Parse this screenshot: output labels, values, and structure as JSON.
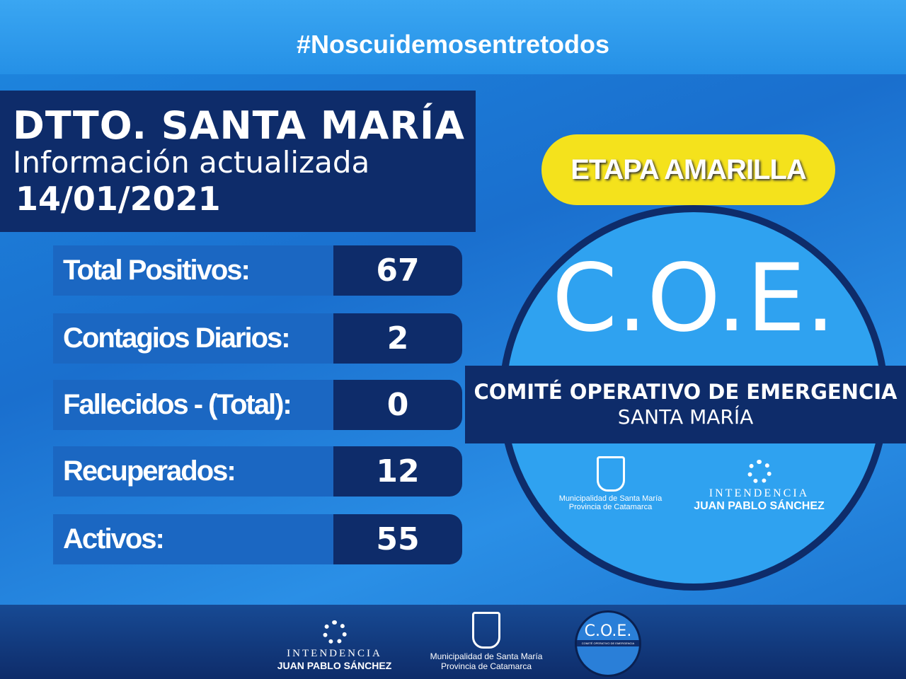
{
  "hashtag": "#Noscuidemosentretodos",
  "title": {
    "district": "DTTO. SANTA MARÍA",
    "subtitle": "Información actualizada",
    "date": "14/01/2021"
  },
  "stats": [
    {
      "label": "Total Positivos:",
      "value": "67"
    },
    {
      "label": "Contagios Diarios:",
      "value": "2"
    },
    {
      "label": "Fallecidos - (Total):",
      "value": "0"
    },
    {
      "label": "Recuperados:",
      "value": "12"
    },
    {
      "label": "Activos:",
      "value": "55"
    }
  ],
  "stage": "ETAPA AMARILLA",
  "coe": {
    "acronym": "C.O.E.",
    "name": "COMITÉ OPERATIVO DE EMERGENCIA",
    "place": "SANTA MARÍA"
  },
  "logos": {
    "muni_line1": "Municipalidad de Santa María",
    "muni_line2": "Provincia de Catamarca",
    "intend_line1": "INTENDENCIA",
    "intend_line2": "JUAN PABLO SÁNCHEZ"
  },
  "colors": {
    "navy": "#0e2c6a",
    "yellow": "#f4e21c",
    "blue": "#2fa2f0"
  }
}
